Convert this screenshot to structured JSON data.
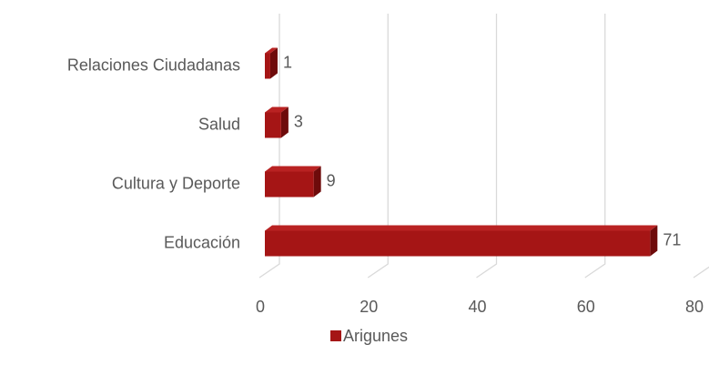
{
  "chart_data": {
    "type": "bar3d_horizontal",
    "categories": [
      "Relaciones Ciudadanas",
      "Salud",
      "Cultura y Deporte",
      "Educación"
    ],
    "series": [
      {
        "name": "Arigunes",
        "color": "#a51515",
        "values": [
          1,
          3,
          9,
          71
        ]
      }
    ],
    "xlim": [
      0,
      80
    ],
    "xticks": [
      0,
      20,
      40,
      60,
      80
    ],
    "grid": true,
    "legend": "bottom"
  }
}
